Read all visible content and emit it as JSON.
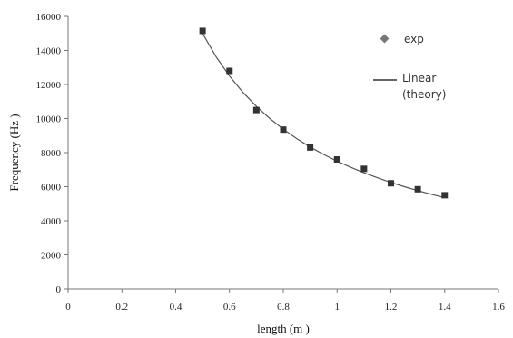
{
  "chart_data": {
    "type": "scatter",
    "xlabel": "length (m )",
    "ylabel": "Frequency (Hz )",
    "xlim": [
      0,
      1.6
    ],
    "ylim": [
      0,
      16000
    ],
    "xticks": [
      "0",
      "0.2",
      "0.4",
      "0.6",
      "0.8",
      "1",
      "1.2",
      "1.4",
      "1.6"
    ],
    "yticks": [
      "0",
      "2000",
      "4000",
      "6000",
      "8000",
      "10000",
      "12000",
      "14000",
      "16000"
    ],
    "grid": false,
    "legend_position": "top-right",
    "series": [
      {
        "name": "exp",
        "kind": "markers",
        "marker": "square",
        "color": "#333333",
        "x": [
          0.5,
          0.6,
          0.7,
          0.8,
          0.9,
          1.0,
          1.1,
          1.2,
          1.3,
          1.4
        ],
        "y": [
          15150,
          12800,
          10500,
          9350,
          8300,
          7600,
          7050,
          6200,
          5850,
          5500
        ]
      },
      {
        "name": "Linear (theory)",
        "legend_lines": [
          "Linear",
          "(theory)"
        ],
        "kind": "line",
        "color": "#555555",
        "x": [
          0.5,
          0.55,
          0.6,
          0.65,
          0.7,
          0.75,
          0.8,
          0.85,
          0.9,
          0.95,
          1.0,
          1.05,
          1.1,
          1.15,
          1.2,
          1.25,
          1.3,
          1.35,
          1.4
        ],
        "y": [
          15000,
          13636,
          12500,
          11538,
          10714,
          10000,
          9375,
          8824,
          8333,
          7895,
          7500,
          7143,
          6818,
          6522,
          6250,
          6000,
          5769,
          5556,
          5357
        ]
      }
    ]
  }
}
